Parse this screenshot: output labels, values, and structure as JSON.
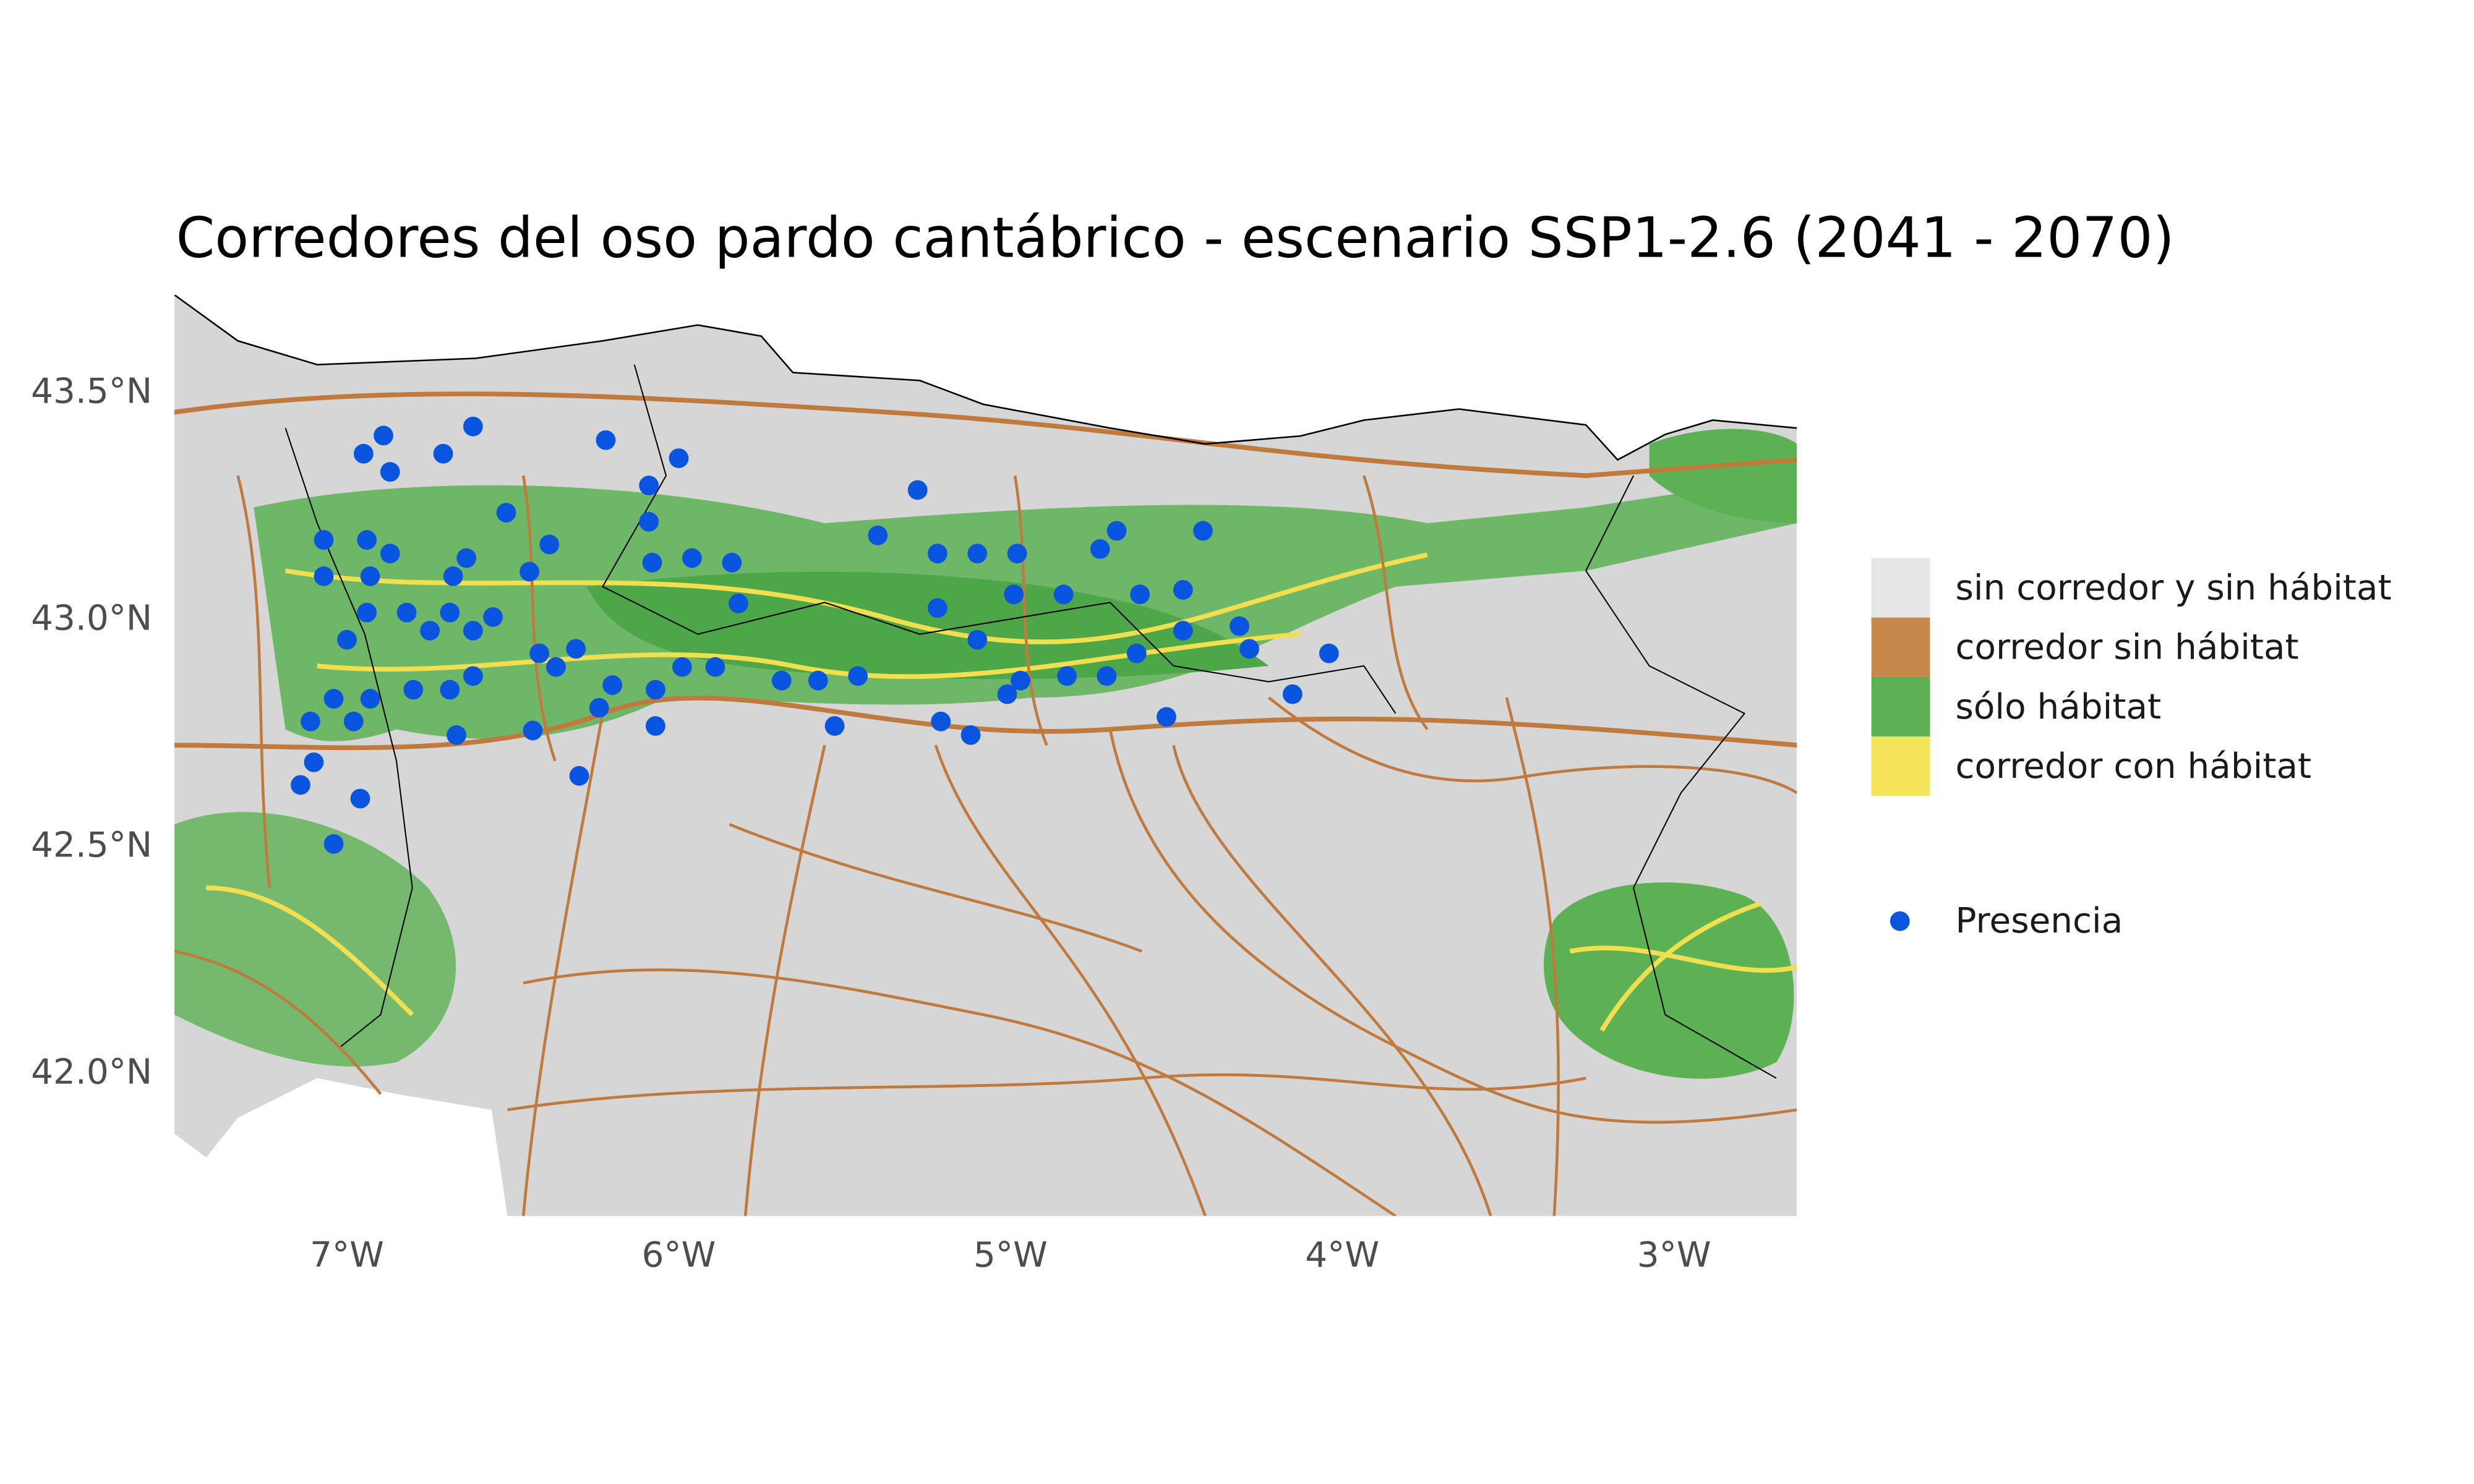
{
  "chart_data": {
    "type": "scatter",
    "title": "Corredores del oso pardo cantábrico - escenario SSP1-2.6 (2041 - 2070)",
    "xlim": [
      -7.52,
      -2.63
    ],
    "ylim": [
      41.68,
      43.71
    ],
    "xticks": [
      {
        "value": -7,
        "label": "7°W"
      },
      {
        "value": -6,
        "label": "6°W"
      },
      {
        "value": -5,
        "label": "5°W"
      },
      {
        "value": -4,
        "label": "4°W"
      },
      {
        "value": -3,
        "label": "3°W"
      }
    ],
    "yticks": [
      {
        "value": 42.0,
        "label": "42.0°N"
      },
      {
        "value": 42.5,
        "label": "42.5°N"
      },
      {
        "value": 43.0,
        "label": "43.0°N"
      },
      {
        "value": 43.5,
        "label": "43.5°N"
      }
    ],
    "grid": false,
    "classes": [
      {
        "name": "sin corredor y sin hábitat",
        "color": "#e6e6e6"
      },
      {
        "name": "corredor sin hábitat",
        "color": "#c8874b"
      },
      {
        "name": "sólo hábitat",
        "color": "#5cb154"
      },
      {
        "name": "corredor con hábitat",
        "color": "#f5e35a"
      }
    ],
    "series": [
      {
        "name": "Presencia",
        "color": "#0a55e0",
        "x": [
          -6.89,
          -6.95,
          -6.87,
          -6.62,
          -6.71,
          -6.22,
          -6.0,
          -6.09,
          -5.28,
          -6.52,
          -6.09,
          -7.07,
          -6.94,
          -6.87,
          -6.39,
          -5.4,
          -5.22,
          -5.1,
          -4.98,
          -4.68,
          -4.73,
          -4.42,
          -6.08,
          -5.96,
          -5.84,
          -7.07,
          -6.93,
          -6.64,
          -6.45,
          -6.68,
          -6.94,
          -6.82,
          -6.69,
          -6.56,
          -5.82,
          -5.22,
          -4.99,
          -4.84,
          -4.61,
          -4.48,
          -6.75,
          -6.62,
          -7.0,
          -6.42,
          -6.37,
          -6.31,
          -5.99,
          -5.89,
          -5.1,
          -4.48,
          -4.31,
          -4.28,
          -4.62,
          -4.04,
          -7.04,
          -6.8,
          -6.69,
          -6.93,
          -7.11,
          -6.98,
          -6.62,
          -6.2,
          -6.24,
          -6.07,
          -5.69,
          -5.58,
          -5.46,
          -5.01,
          -4.97,
          -4.83,
          -4.71,
          -4.15,
          -5.21,
          -5.12,
          -4.53,
          -5.53,
          -6.07,
          -6.67,
          -6.44,
          -7.1,
          -7.14,
          -6.96,
          -6.3,
          -7.04
        ],
        "values": [
          43.4,
          43.36,
          43.32,
          43.42,
          43.36,
          43.39,
          43.35,
          43.29,
          43.28,
          43.23,
          43.21,
          43.17,
          43.17,
          43.14,
          43.16,
          43.18,
          43.14,
          43.14,
          43.14,
          43.19,
          43.15,
          43.19,
          43.12,
          43.13,
          43.12,
          43.09,
          43.09,
          43.13,
          43.1,
          43.09,
          43.01,
          43.01,
          43.01,
          43.0,
          43.03,
          43.02,
          43.05,
          43.05,
          43.05,
          43.06,
          42.97,
          42.97,
          42.95,
          42.92,
          42.89,
          42.93,
          42.89,
          42.89,
          42.95,
          42.97,
          42.98,
          42.93,
          42.92,
          42.92,
          42.82,
          42.84,
          42.84,
          42.82,
          42.77,
          42.77,
          42.87,
          42.85,
          42.8,
          42.84,
          42.86,
          42.86,
          42.87,
          42.83,
          42.86,
          42.87,
          42.87,
          42.83,
          42.77,
          42.74,
          42.78,
          42.76,
          42.76,
          42.74,
          42.75,
          42.68,
          42.63,
          42.6,
          42.65,
          42.5
        ]
      }
    ]
  }
}
